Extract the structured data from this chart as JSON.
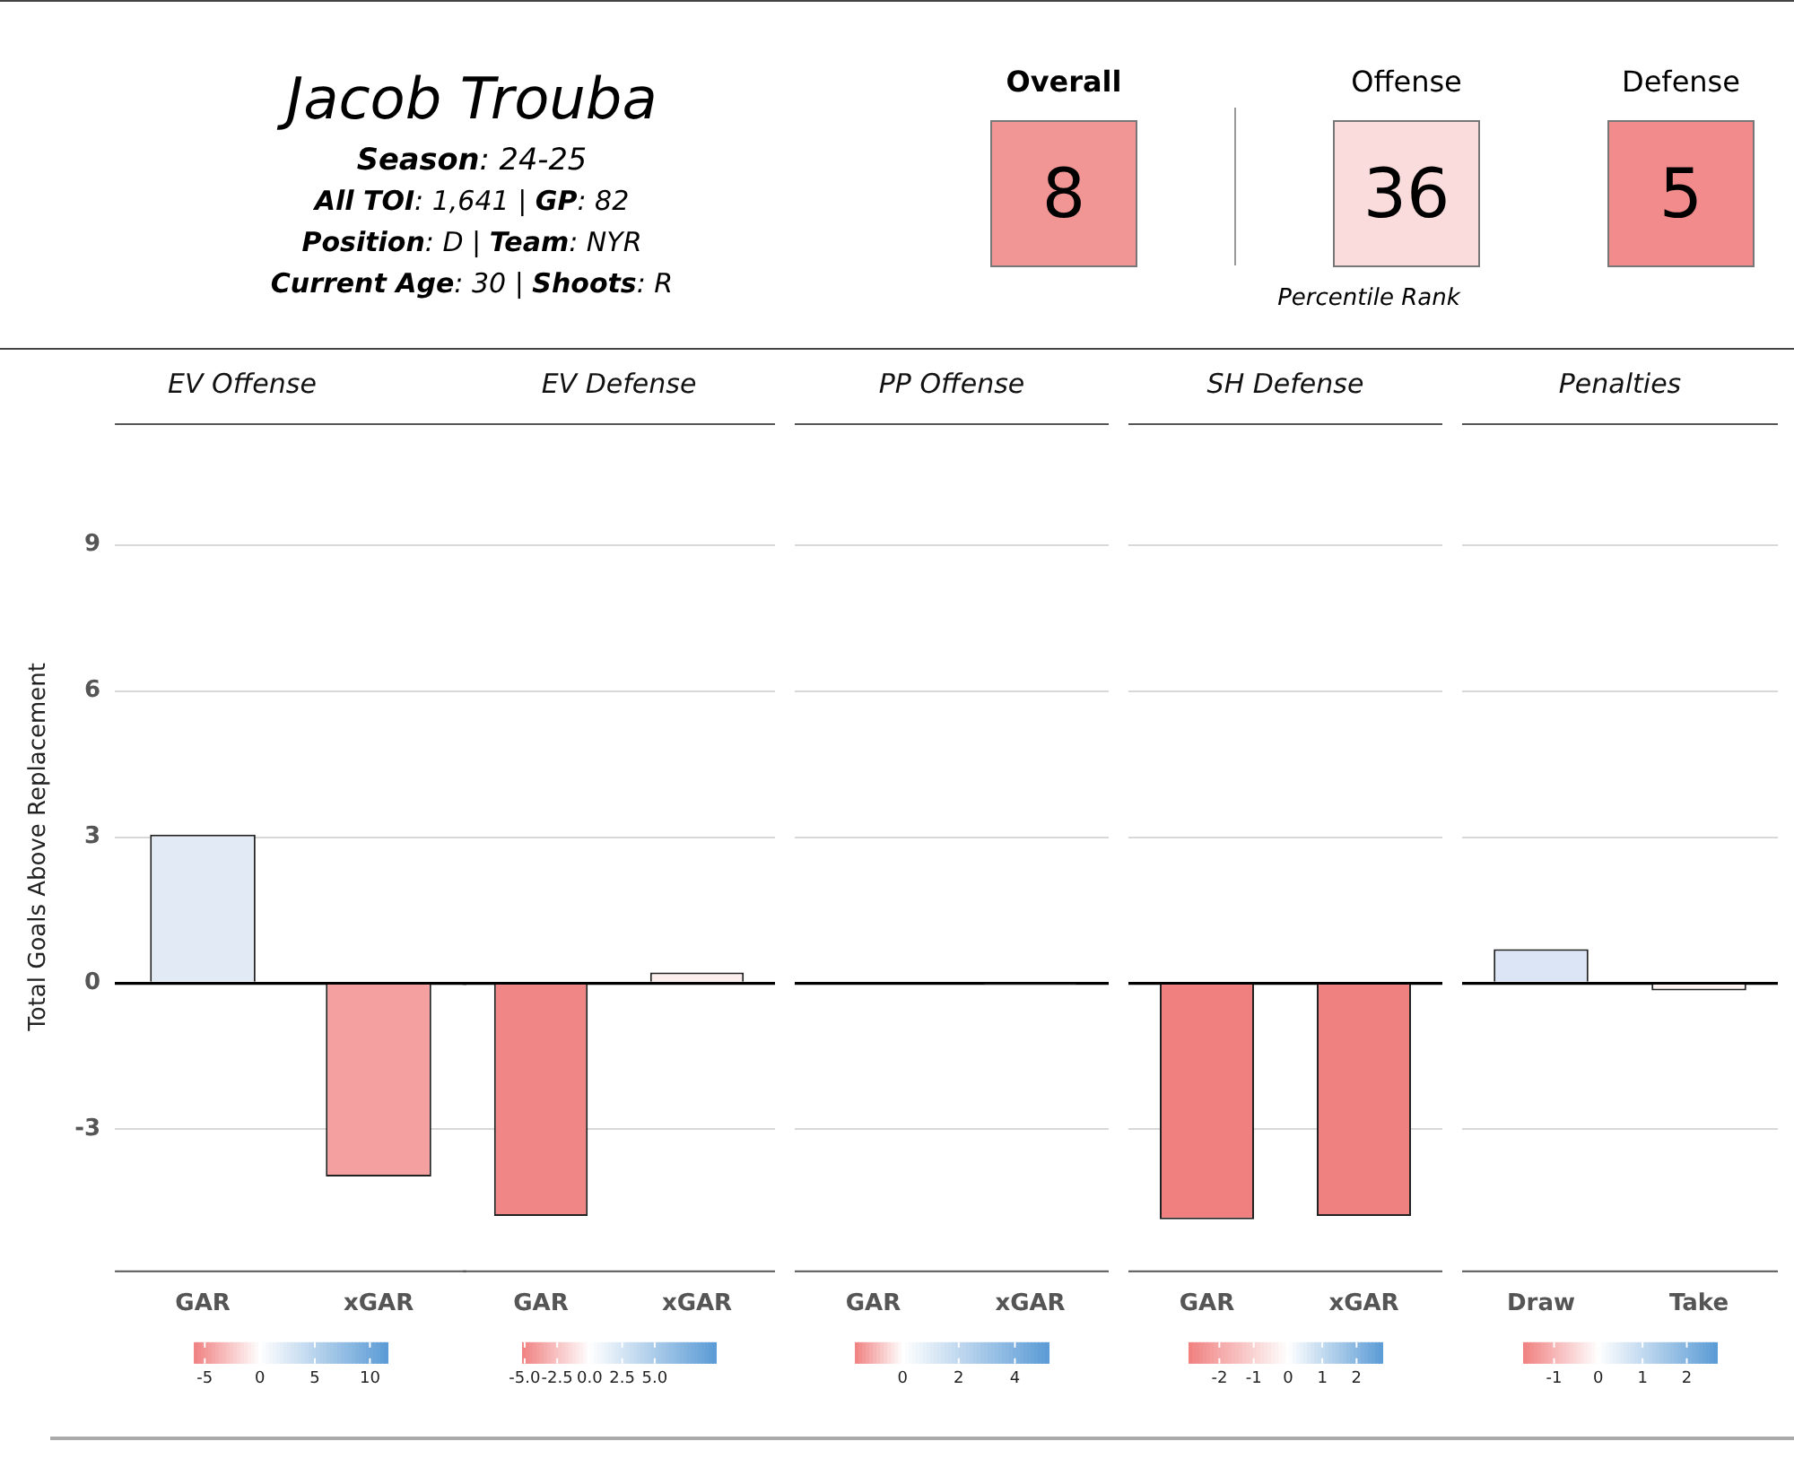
{
  "chart_data": [
    {
      "type": "other",
      "title": "Jacob Trouba",
      "annotations": [
        "Season: 24-25",
        "All TOI: 1,641 | GP: 82",
        "Position: D | Team: NYR",
        "Current Age: 30 | Shoots: R"
      ],
      "xlabel": "Percentile Rank",
      "data_labels": true,
      "categories": [
        "Overall",
        "Offense",
        "Defense"
      ],
      "values": [
        8,
        36,
        5
      ],
      "colors": [
        "#f29595",
        "#fadcdc",
        "#f28b8b"
      ]
    },
    {
      "type": "bar",
      "title": "EV Offense",
      "ylabel": "Total Goals Above Replacement",
      "categories": [
        "GAR",
        "xGAR"
      ],
      "values": [
        3.05,
        -3.97
      ],
      "colors": [
        "#e2eaf6",
        "#f5a0a0"
      ],
      "ylim": [
        -5.9,
        11.5
      ],
      "yticks": [
        -3,
        0,
        3,
        6,
        9
      ],
      "grid": "y",
      "clim": [
        -6,
        11.6
      ],
      "cticks": [
        -5,
        0,
        5,
        10
      ]
    },
    {
      "type": "bar",
      "title": "EV Defense",
      "categories": [
        "GAR",
        "xGAR"
      ],
      "values": [
        -4.78,
        0.22
      ],
      "colors": [
        "#f08686",
        "#fdeeee"
      ],
      "ylim": [
        -5.9,
        11.5
      ],
      "yticks": [
        -3,
        0,
        3,
        6,
        9
      ],
      "grid": "y",
      "tick_labels": "x",
      "clim": [
        -5.2,
        9.7
      ],
      "cticks": [
        {
          "value": -5,
          "label": "-5.0"
        },
        -2.5,
        {
          "value": 0,
          "label": "0.0"
        },
        2.5,
        {
          "value": 5,
          "label": "5.0"
        }
      ]
    },
    {
      "type": "bar",
      "title": "PP Offense",
      "categories": [
        "GAR",
        "xGAR"
      ],
      "values": [
        -0.03,
        -0.02
      ],
      "colors": [
        "#fbf4f4",
        "#fcf7f7"
      ],
      "ylim": [
        -5.9,
        11.5
      ],
      "yticks": [
        -3,
        0,
        3,
        6,
        9
      ],
      "grid": "y",
      "tick_labels": "x",
      "clim": [
        -1.7,
        5.2
      ],
      "cticks": [
        0,
        2,
        4
      ]
    },
    {
      "type": "bar",
      "title": "SH Defense",
      "categories": [
        "GAR",
        "xGAR"
      ],
      "values": [
        -4.85,
        -4.78
      ],
      "colors": [
        "#f08080",
        "#f08181"
      ],
      "ylim": [
        -5.9,
        11.5
      ],
      "yticks": [
        -3,
        0,
        3,
        6,
        9
      ],
      "grid": "y",
      "tick_labels": "x",
      "clim": [
        -2.9,
        2.75
      ],
      "cticks": [
        -2,
        -1,
        0,
        1,
        2
      ]
    },
    {
      "type": "bar",
      "title": "Penalties",
      "categories": [
        "Draw",
        "Take"
      ],
      "values": [
        0.7,
        -0.15
      ],
      "colors": [
        "#dbe5f5",
        "#fdf3f3"
      ],
      "ylim": [
        -5.9,
        11.5
      ],
      "yticks": [
        -3,
        0,
        3,
        6,
        9
      ],
      "grid": "y",
      "tick_labels": "x",
      "clim": [
        -1.7,
        2.68
      ],
      "cticks": [
        -1,
        0,
        1,
        2
      ]
    }
  ]
}
